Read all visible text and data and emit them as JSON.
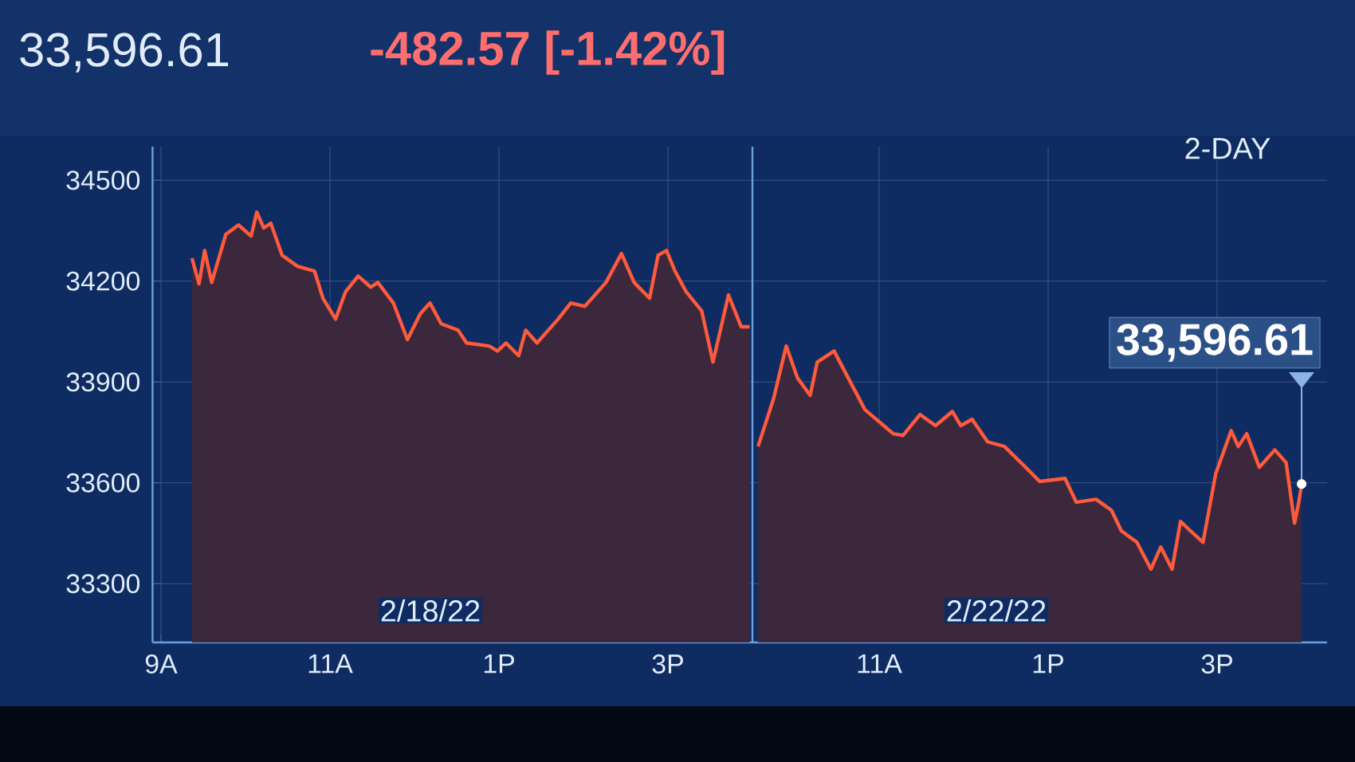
{
  "chart_data": [
    {
      "type": "area",
      "title": "33,596.61",
      "subtitle": "-482.57 [-1.42%]",
      "x": [
        "--02-18T09:22",
        "--02-18T09:27",
        "--02-18T09:31",
        "--02-18T09:36",
        "--02-18T09:46",
        "--02-18T09:55",
        "--02-18T10:04",
        "--02-18T10:08",
        "--02-18T10:13",
        "--02-18T10:18",
        "--02-18T10:26",
        "--02-18T10:37",
        "--02-18T10:49",
        "--02-18T10:55",
        "--02-18T11:04",
        "--02-18T11:11",
        "--02-18T11:20",
        "--02-18T11:29",
        "--02-18T11:34",
        "--02-18T11:45",
        "--02-18T11:55",
        "--02-18T12:04",
        "--02-18T12:11",
        "--02-18T12:19",
        "--02-18T12:31",
        "--02-18T12:37",
        "--02-18T12:53",
        "--02-18T12:59",
        "--02-18T13:05",
        "--02-18T13:14",
        "--02-18T13:19",
        "--02-18T13:27",
        "--02-18T13:42",
        "--02-18T13:51",
        "--02-18T14:01",
        "--02-18T14:16",
        "--02-18T14:27",
        "--02-18T14:36",
        "--02-18T14:47",
        "--02-18T14:53",
        "--02-18T14:59",
        "--02-18T15:05",
        "--02-18T15:13",
        "--02-18T15:24",
        "--02-18T15:32",
        "--02-18T15:43",
        "--02-18T15:52",
        "--02-18T15:58"
      ],
      "series": [
        {
          "color": "#ff5a3c",
          "values": [
            34268,
            34192,
            34291,
            34196,
            34339,
            34367,
            34334,
            34405,
            34358,
            34372,
            34277,
            34244,
            34230,
            34149,
            34087,
            34168,
            34215,
            34182,
            34196,
            34135,
            34026,
            34102,
            34135,
            34073,
            34054,
            34016,
            34007,
            33992,
            34016,
            33978,
            34054,
            34016,
            34087,
            34135,
            34125,
            34196,
            34282,
            34196,
            34149,
            34277,
            34291,
            34230,
            34168,
            34111,
            33959,
            34159,
            34064,
            34064
          ]
        }
      ],
      "xlim": [
        "--02-18T08:54",
        "--02-18T16:00"
      ],
      "ylim": [
        33125,
        34600
      ],
      "xticks": [
        {
          "value": "--02-18T09:00",
          "label": "9A"
        },
        {
          "value": "--02-18T11:00",
          "label": "11A"
        },
        {
          "value": "--02-18T13:00",
          "label": "1P"
        },
        {
          "value": "--02-18T15:00",
          "label": "3P"
        }
      ],
      "yticks": [
        33300,
        33600,
        33900,
        34200,
        34500
      ],
      "grid": true,
      "annotations": [
        "2/18/22"
      ]
    },
    {
      "type": "area",
      "x": [
        "--02-22T09:34",
        "--02-22T09:45",
        "--02-22T09:54",
        "--02-22T10:02",
        "--02-22T10:11",
        "--02-22T10:16",
        "--02-22T10:28",
        "--02-22T10:38",
        "--02-22T10:50",
        "--02-22T11:10",
        "--02-22T11:17",
        "--02-22T11:29",
        "--02-22T11:40",
        "--02-22T11:52",
        "--02-22T11:58",
        "--02-22T12:06",
        "--02-22T12:17",
        "--02-22T12:29",
        "--02-22T12:44",
        "--02-22T12:54",
        "--02-22T13:12",
        "--02-22T13:20",
        "--02-22T13:34",
        "--02-22T13:45",
        "--02-22T13:52",
        "--02-22T14:03",
        "--02-22T14:13",
        "--02-22T14:20",
        "--02-22T14:28",
        "--02-22T14:34",
        "--02-22T14:41",
        "--02-22T14:50",
        "--02-22T14:59",
        "--02-22T15:10",
        "--02-22T15:15",
        "--02-22T15:21",
        "--02-22T15:30",
        "--02-22T15:41",
        "--02-22T15:49",
        "--02-22T15:55",
        "--02-22T15:58",
        "--02-22T16:00"
      ],
      "series": [
        {
          "color": "#ff5a3c",
          "values": [
            33708,
            33850,
            34007,
            33912,
            33860,
            33959,
            33992,
            33912,
            33817,
            33746,
            33741,
            33803,
            33770,
            33812,
            33770,
            33789,
            33722,
            33708,
            33646,
            33604,
            33613,
            33542,
            33551,
            33518,
            33457,
            33423,
            33343,
            33409,
            33343,
            33485,
            33457,
            33423,
            33627,
            33755,
            33708,
            33746,
            33646,
            33698,
            33660,
            33480,
            33542,
            33596.61
          ]
        }
      ],
      "xlim": [
        "--02-22T09:30",
        "--02-22T16:18"
      ],
      "ylim": [
        33125,
        34600
      ],
      "xticks": [
        {
          "value": "--02-22T11:00",
          "label": "11A"
        },
        {
          "value": "--02-22T13:00",
          "label": "1P"
        },
        {
          "value": "--02-22T15:00",
          "label": "3P"
        }
      ],
      "yticks": [
        33300,
        33600,
        33900,
        34200,
        34500
      ],
      "tick_labels": "x",
      "grid": true,
      "annotations": [
        "2/22/22",
        "2-DAY",
        "33,596.61"
      ]
    }
  ]
}
